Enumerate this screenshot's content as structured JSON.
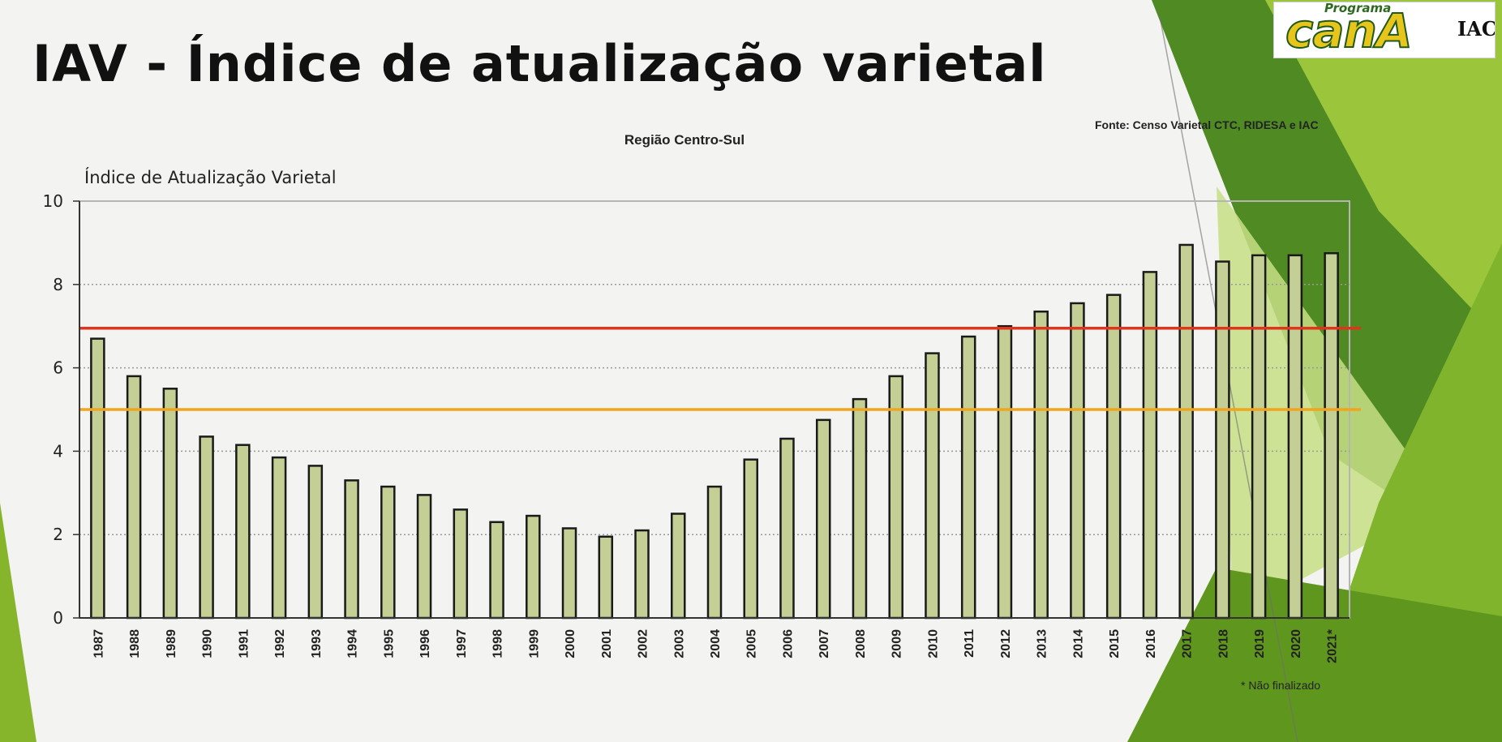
{
  "slide": {
    "title": "IAV - Índice de atualização varietal",
    "logo": {
      "top_text": "Programa",
      "brand_text": "canA",
      "side_text": "IAC"
    },
    "source": "Fonte: Censo Varietal  CTC, RIDESA e IAC",
    "footnote": "* Não finalizado"
  },
  "colors": {
    "bar_fill": "#c3cf95",
    "bar_stroke": "#1a1a1a",
    "red_line": "#e2341b",
    "orange_line": "#f2a51c",
    "accent_green": "#5f8f1f"
  },
  "chart_data": {
    "type": "bar",
    "title": "Região Centro-Sul",
    "ylabel": "Índice de Atualização Varietal",
    "xlabel": "",
    "ylim": [
      0,
      10
    ],
    "yticks": [
      0,
      2,
      4,
      6,
      8,
      10
    ],
    "grid": "horizontal dotted",
    "categories": [
      "1987",
      "1988",
      "1989",
      "1990",
      "1991",
      "1992",
      "1993",
      "1994",
      "1995",
      "1996",
      "1997",
      "1998",
      "1999",
      "2000",
      "2001",
      "2002",
      "2003",
      "2004",
      "2005",
      "2006",
      "2007",
      "2008",
      "2009",
      "2010",
      "2011",
      "2012",
      "2013",
      "2014",
      "2015",
      "2016",
      "2017",
      "2018",
      "2019",
      "2020",
      "2021*"
    ],
    "values": [
      6.7,
      5.8,
      5.5,
      4.35,
      4.15,
      3.85,
      3.65,
      3.3,
      3.15,
      2.95,
      2.6,
      2.3,
      2.45,
      2.15,
      1.95,
      2.1,
      2.5,
      3.15,
      3.8,
      4.3,
      4.75,
      5.25,
      5.8,
      6.35,
      6.75,
      7.0,
      7.35,
      7.55,
      7.75,
      8.3,
      8.95,
      8.55,
      8.7,
      8.7,
      8.75
    ],
    "reference_lines": [
      {
        "value": 6.95,
        "color": "#e2341b"
      },
      {
        "value": 5.0,
        "color": "#f2a51c"
      }
    ]
  }
}
